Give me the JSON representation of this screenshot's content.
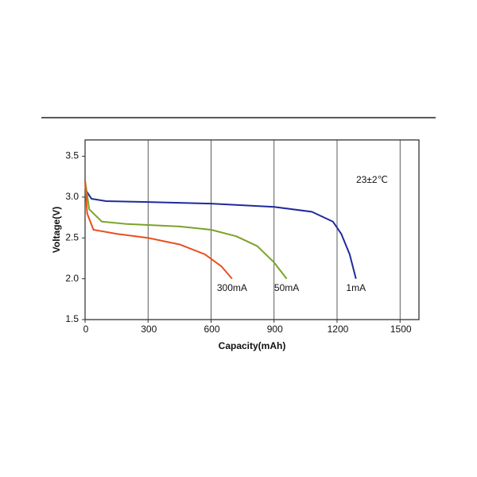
{
  "chart_data": {
    "type": "line",
    "x_label": "Capacity(mAh)",
    "y_label": "Voltage(V)",
    "annotation": "23±2℃",
    "xlim": [
      0,
      1590
    ],
    "xticks": [
      0,
      300,
      600,
      900,
      1200,
      1500
    ],
    "ylim": [
      1.5,
      3.7
    ],
    "yticks": [
      {
        "value": 1.5,
        "label": "1.5"
      },
      {
        "value": 2,
        "label": "2.0"
      },
      {
        "value": 2.5,
        "label": "2.5"
      },
      {
        "value": 3,
        "label": "3.0"
      },
      {
        "value": 3.5,
        "label": "3.5"
      }
    ],
    "grid": true,
    "series": [
      {
        "name": "1mA",
        "color": "#1f2a9c",
        "x": [
          0,
          30,
          100,
          300,
          600,
          900,
          1080,
          1180,
          1220,
          1260,
          1290
        ],
        "values": [
          3.1,
          2.98,
          2.95,
          2.94,
          2.92,
          2.88,
          2.82,
          2.7,
          2.55,
          2.3,
          2.0
        ]
      },
      {
        "name": "50mA",
        "color": "#7aa329",
        "x": [
          0,
          20,
          80,
          200,
          450,
          600,
          720,
          820,
          900,
          960
        ],
        "values": [
          3.2,
          2.85,
          2.7,
          2.67,
          2.64,
          2.6,
          2.52,
          2.4,
          2.2,
          2.0
        ]
      },
      {
        "name": "300mA",
        "color": "#e8501e",
        "x": [
          0,
          10,
          40,
          150,
          300,
          450,
          570,
          650,
          700
        ],
        "values": [
          3.2,
          2.8,
          2.6,
          2.55,
          2.5,
          2.42,
          2.3,
          2.15,
          2.0
        ]
      }
    ]
  }
}
